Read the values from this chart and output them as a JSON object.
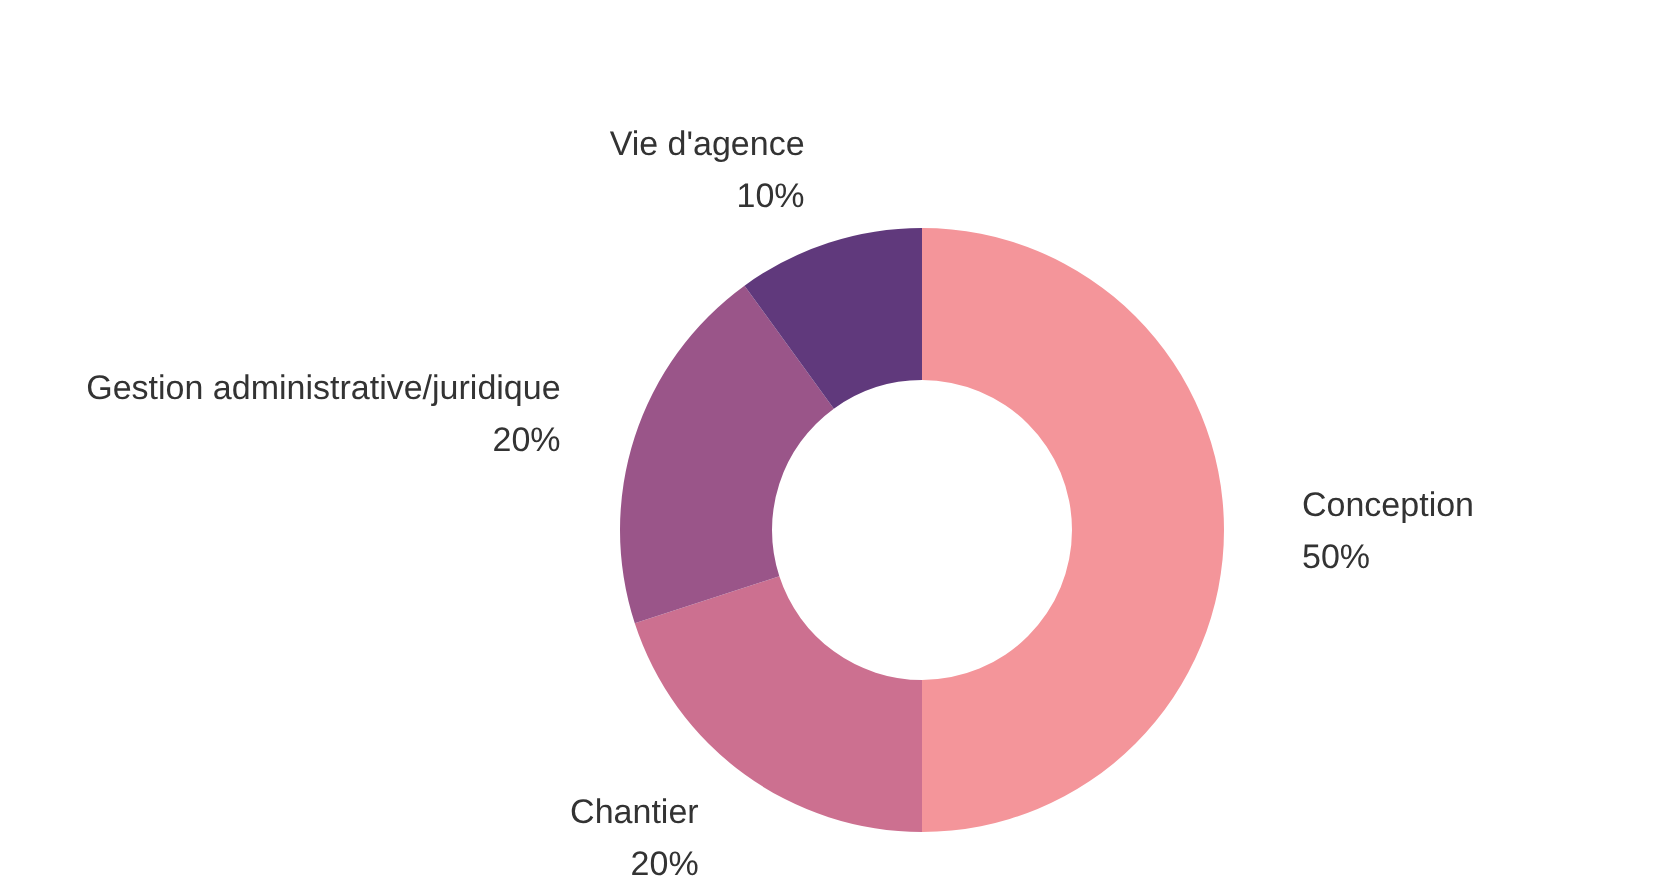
{
  "chart_data": {
    "type": "donut",
    "categories": [
      "Conception",
      "Chantier",
      "Gestion administrative/juridique",
      "Vie d'agence"
    ],
    "values": [
      50,
      20,
      20,
      10
    ],
    "value_labels": [
      "50%",
      "20%",
      "20%",
      "10%"
    ],
    "colors": [
      "#f4959a",
      "#cc7090",
      "#9a5589",
      "#60397c"
    ]
  }
}
